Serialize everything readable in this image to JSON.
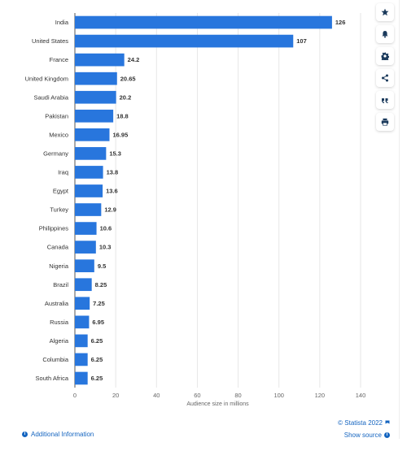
{
  "chart_data": {
    "type": "bar",
    "orientation": "horizontal",
    "categories": [
      "India",
      "United States",
      "France",
      "United Kingdom",
      "Saudi Arabia",
      "Pakistan",
      "Mexico",
      "Germany",
      "Iraq",
      "Egypt",
      "Turkey",
      "Philippines",
      "Canada",
      "Nigeria",
      "Brazil",
      "Australia",
      "Russia",
      "Algeria",
      "Columbia",
      "South Africa"
    ],
    "values": [
      126,
      107,
      24.2,
      20.65,
      20.2,
      18.8,
      16.95,
      15.3,
      13.8,
      13.6,
      12.9,
      10.6,
      10.3,
      9.5,
      8.25,
      7.25,
      6.95,
      6.25,
      6.25,
      6.25
    ],
    "value_labels": [
      "126",
      "107",
      "24.2",
      "20.65",
      "20.2",
      "18.8",
      "16.95",
      "15.3",
      "13.8",
      "13.6",
      "12.9",
      "10.6",
      "10.3",
      "9.5",
      "8.25",
      "7.25",
      "6.95",
      "6.25",
      "6.25",
      "6.25"
    ],
    "xlabel": "Audience size in millions",
    "xlim": [
      0,
      140
    ],
    "xticks": [
      0,
      20,
      40,
      60,
      80,
      100,
      120,
      140
    ],
    "grid": true,
    "bar_color": "#2876dd"
  },
  "toolbar": {
    "buttons": [
      {
        "name": "favorite",
        "icon": "star-icon"
      },
      {
        "name": "notification",
        "icon": "bell-icon"
      },
      {
        "name": "settings",
        "icon": "gear-icon"
      },
      {
        "name": "share",
        "icon": "share-icon"
      },
      {
        "name": "cite",
        "icon": "quote-icon"
      },
      {
        "name": "print",
        "icon": "printer-icon"
      }
    ]
  },
  "footer": {
    "copyright": "© Statista 2022",
    "show_source": "Show source",
    "additional_info": "Additional Information"
  },
  "colors": {
    "accent": "#1565c0",
    "bar": "#2876dd"
  }
}
